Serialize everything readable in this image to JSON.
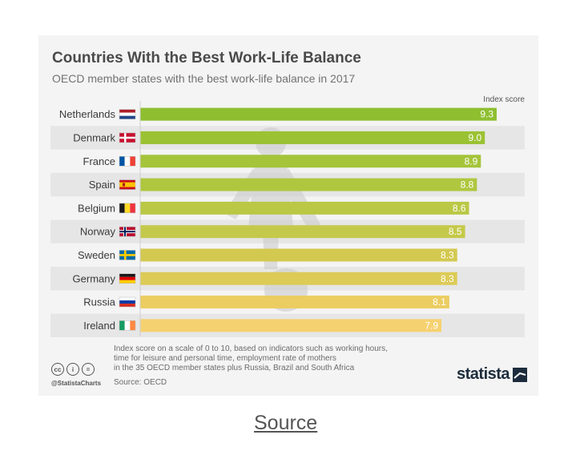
{
  "title": "Countries With the Best Work-Life Balance",
  "subtitle": "OECD member states with the best work-life balance in 2017",
  "footnote": {
    "line1": "Index score on a scale of 0 to 10, based on indicators such as working hours,",
    "line2": "time for leisure and personal time, employment rate of mothers",
    "line3": "in the 35 OECD member states plus Russia, Brazil and South Africa",
    "source": "Source: OECD"
  },
  "branding": {
    "handle": "@StatistaCharts",
    "name": "statista",
    "cc_icons": [
      "cc-icon",
      "by-icon",
      "nd-icon"
    ]
  },
  "source_link": "Source",
  "chart_data": {
    "type": "bar",
    "orientation": "horizontal",
    "value_label": "Index score",
    "categories": [
      "Netherlands",
      "Denmark",
      "France",
      "Spain",
      "Belgium",
      "Norway",
      "Sweden",
      "Germany",
      "Russia",
      "Ireland"
    ],
    "values": [
      9.3,
      9.0,
      8.9,
      8.8,
      8.6,
      8.5,
      8.3,
      8.3,
      8.1,
      7.9
    ],
    "labels": [
      "9.3",
      "9.0",
      "8.9",
      "8.8",
      "8.6",
      "8.5",
      "8.3",
      "8.3",
      "8.1",
      "7.9"
    ],
    "xlim": [
      0,
      10
    ],
    "colors": [
      "#8fbf30",
      "#9bc233",
      "#a5c43a",
      "#afc73f",
      "#bac845",
      "#c5c94b",
      "#d3c951",
      "#dccb56",
      "#ebcd62",
      "#f6d170"
    ],
    "flags": [
      "netherlands-flag",
      "denmark-flag",
      "france-flag",
      "spain-flag",
      "belgium-flag",
      "norway-flag",
      "sweden-flag",
      "germany-flag",
      "russia-flag",
      "ireland-flag"
    ],
    "row_stripe_color": "#e6e6e6"
  }
}
